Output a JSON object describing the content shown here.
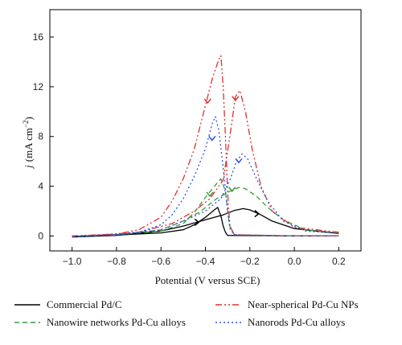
{
  "chart_data": {
    "type": "line",
    "title": "",
    "xlabel": "Potential (V versus SCE)",
    "ylabel_main": "j",
    "ylabel_unit": "(mA cm",
    "ylabel_sup": "−2",
    "ylabel_close": ")",
    "xlim": [
      -1.1,
      0.3
    ],
    "ylim": [
      -1.2,
      18.2
    ],
    "xticks": [
      -1.0,
      -0.8,
      -0.6,
      -0.4,
      -0.2,
      0.0,
      0.2
    ],
    "xtick_labels": [
      "−1.0",
      "−0.8",
      "−0.6",
      "−0.4",
      "−0.2",
      "0.0",
      "0.2"
    ],
    "yticks": [
      0,
      4,
      8,
      12,
      16
    ],
    "ytick_labels": [
      "0",
      "4",
      "8",
      "12",
      "16"
    ],
    "grid": false,
    "legend_position": "bottom",
    "series": [
      {
        "name": "Commercial Pd/C",
        "color": "#000000",
        "dash": "",
        "segments": [
          [
            [
              -1.0,
              -0.05
            ],
            [
              -0.8,
              0.08
            ],
            [
              -0.6,
              0.25
            ],
            [
              -0.5,
              0.5
            ],
            [
              -0.45,
              0.9
            ],
            [
              -0.4,
              1.5
            ],
            [
              -0.36,
              2.1
            ],
            [
              -0.345,
              2.3
            ],
            [
              -0.33,
              1.6
            ],
            [
              -0.32,
              0.8
            ],
            [
              -0.31,
              0.3
            ],
            [
              -0.3,
              0.05
            ],
            [
              0.0,
              0.0
            ],
            [
              0.2,
              0.0
            ]
          ],
          [
            [
              0.2,
              0.2
            ],
            [
              0.0,
              0.6
            ],
            [
              -0.1,
              1.2
            ],
            [
              -0.15,
              1.7
            ],
            [
              -0.2,
              2.1
            ],
            [
              -0.23,
              2.2
            ],
            [
              -0.27,
              2.05
            ],
            [
              -0.32,
              1.7
            ],
            [
              -0.4,
              1.3
            ],
            [
              -0.5,
              0.8
            ],
            [
              -0.6,
              0.4
            ],
            [
              -0.8,
              0.05
            ],
            [
              -1.0,
              -0.08
            ]
          ]
        ],
        "arrows": [
          {
            "x": -0.16,
            "y": 1.8,
            "dir": "right"
          },
          {
            "x": -0.43,
            "y": 1.1,
            "dir": "right"
          }
        ]
      },
      {
        "name": "Nanowire networks Pd-Cu alloys",
        "color": "#3a9a3a",
        "dash": "6,4",
        "segments": [
          [
            [
              -1.0,
              0.0
            ],
            [
              -0.8,
              0.1
            ],
            [
              -0.6,
              0.4
            ],
            [
              -0.5,
              1.0
            ],
            [
              -0.45,
              1.9
            ],
            [
              -0.4,
              3.1
            ],
            [
              -0.35,
              4.2
            ],
            [
              -0.33,
              4.6
            ],
            [
              -0.31,
              3.6
            ],
            [
              -0.3,
              2.0
            ],
            [
              -0.29,
              0.8
            ],
            [
              -0.27,
              0.1
            ],
            [
              0.0,
              0.0
            ],
            [
              0.2,
              0.0
            ]
          ],
          [
            [
              0.2,
              0.25
            ],
            [
              0.05,
              0.5
            ],
            [
              -0.05,
              1.3
            ],
            [
              -0.12,
              2.3
            ],
            [
              -0.17,
              3.2
            ],
            [
              -0.22,
              3.8
            ],
            [
              -0.25,
              3.9
            ],
            [
              -0.29,
              3.6
            ],
            [
              -0.35,
              3.0
            ],
            [
              -0.42,
              2.0
            ],
            [
              -0.5,
              1.2
            ],
            [
              -0.6,
              0.5
            ],
            [
              -0.8,
              0.1
            ],
            [
              -1.0,
              -0.05
            ]
          ]
        ],
        "arrows": [
          {
            "x": -0.38,
            "y": 3.2,
            "dir": "down"
          },
          {
            "x": -0.28,
            "y": 3.6,
            "dir": "down"
          }
        ]
      },
      {
        "name": "Near-spherical Pd-Cu NPs",
        "color": "#e03030",
        "dash": "8,3,2,3,2,3",
        "segments": [
          [
            [
              -1.0,
              0.0
            ],
            [
              -0.8,
              0.15
            ],
            [
              -0.7,
              0.5
            ],
            [
              -0.6,
              1.5
            ],
            [
              -0.55,
              2.8
            ],
            [
              -0.5,
              4.6
            ],
            [
              -0.45,
              7.0
            ],
            [
              -0.4,
              10.5
            ],
            [
              -0.37,
              12.6
            ],
            [
              -0.34,
              14.2
            ],
            [
              -0.33,
              14.5
            ],
            [
              -0.32,
              12.0
            ],
            [
              -0.31,
              8.0
            ],
            [
              -0.3,
              3.5
            ],
            [
              -0.29,
              0.8
            ],
            [
              -0.27,
              0.1
            ],
            [
              0.0,
              0.0
            ],
            [
              0.2,
              0.0
            ]
          ],
          [
            [
              0.2,
              0.3
            ],
            [
              0.0,
              0.7
            ],
            [
              -0.1,
              2.0
            ],
            [
              -0.15,
              4.0
            ],
            [
              -0.19,
              7.0
            ],
            [
              -0.22,
              10.0
            ],
            [
              -0.245,
              11.7
            ],
            [
              -0.265,
              11.2
            ],
            [
              -0.29,
              8.0
            ],
            [
              -0.32,
              4.5
            ],
            [
              -0.38,
              3.0
            ],
            [
              -0.45,
              2.0
            ],
            [
              -0.55,
              1.0
            ],
            [
              -0.7,
              0.3
            ],
            [
              -1.0,
              -0.05
            ]
          ]
        ],
        "arrows": [
          {
            "x": -0.39,
            "y": 10.7,
            "dir": "down"
          },
          {
            "x": -0.265,
            "y": 10.9,
            "dir": "down"
          }
        ]
      },
      {
        "name": "Nanorods Pd-Cu alloys",
        "color": "#3050e0",
        "dash": "2,3",
        "segments": [
          [
            [
              -1.0,
              0.0
            ],
            [
              -0.8,
              0.1
            ],
            [
              -0.7,
              0.3
            ],
            [
              -0.6,
              0.9
            ],
            [
              -0.55,
              1.7
            ],
            [
              -0.5,
              3.0
            ],
            [
              -0.45,
              4.8
            ],
            [
              -0.4,
              7.0
            ],
            [
              -0.37,
              9.0
            ],
            [
              -0.355,
              9.6
            ],
            [
              -0.34,
              8.5
            ],
            [
              -0.32,
              5.5
            ],
            [
              -0.3,
              2.0
            ],
            [
              -0.29,
              0.6
            ],
            [
              -0.27,
              0.1
            ],
            [
              0.0,
              0.0
            ],
            [
              0.2,
              0.0
            ]
          ],
          [
            [
              0.2,
              0.2
            ],
            [
              0.05,
              0.4
            ],
            [
              -0.05,
              1.2
            ],
            [
              -0.12,
              2.8
            ],
            [
              -0.17,
              4.6
            ],
            [
              -0.21,
              6.2
            ],
            [
              -0.235,
              6.6
            ],
            [
              -0.26,
              6.0
            ],
            [
              -0.29,
              4.5
            ],
            [
              -0.33,
              3.0
            ],
            [
              -0.4,
              2.0
            ],
            [
              -0.5,
              1.2
            ],
            [
              -0.6,
              0.5
            ],
            [
              -0.8,
              0.1
            ],
            [
              -1.0,
              -0.05
            ]
          ]
        ],
        "arrows": [
          {
            "x": -0.37,
            "y": 7.7,
            "dir": "down"
          },
          {
            "x": -0.25,
            "y": 5.9,
            "dir": "down"
          }
        ]
      }
    ]
  }
}
